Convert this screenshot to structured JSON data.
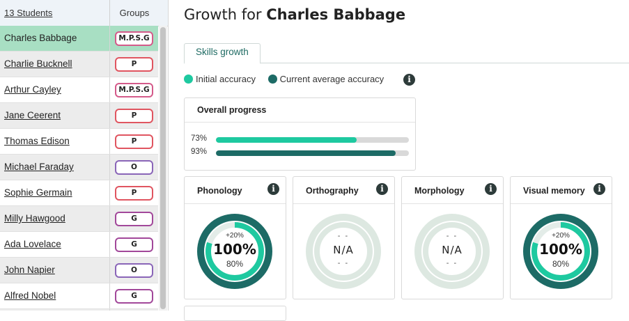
{
  "sidebar": {
    "header_count": "13 Students",
    "header_groups": "Groups",
    "students": [
      {
        "name": "Charles Babbage",
        "group": "M.P.S.G",
        "kind": "mpsg"
      },
      {
        "name": "Charlie Bucknell",
        "group": "P",
        "kind": "p"
      },
      {
        "name": "Arthur Cayley",
        "group": "M.P.S.G",
        "kind": "mpsg"
      },
      {
        "name": "Jane Ceerent",
        "group": "P",
        "kind": "p"
      },
      {
        "name": "Thomas Edison",
        "group": "P",
        "kind": "p"
      },
      {
        "name": "Michael Faraday",
        "group": "O",
        "kind": "o"
      },
      {
        "name": "Sophie Germain",
        "group": "P",
        "kind": "p"
      },
      {
        "name": "Milly Hawgood",
        "group": "G",
        "kind": "g"
      },
      {
        "name": "Ada Lovelace",
        "group": "G",
        "kind": "g"
      },
      {
        "name": "John Napier",
        "group": "O",
        "kind": "o"
      },
      {
        "name": "Alfred Nobel",
        "group": "G",
        "kind": "g"
      },
      {
        "name": "",
        "group": "",
        "kind": "g"
      }
    ],
    "selected_index": 0
  },
  "header": {
    "title_prefix": "Growth for",
    "student_name": "Charles Babbage"
  },
  "tabs": [
    {
      "label": "Skills growth",
      "active": true
    }
  ],
  "legend": {
    "initial_label": "Initial accuracy",
    "current_label": "Current average accuracy",
    "initial_color": "#1ec9a0",
    "current_color": "#1d6b66"
  },
  "overall_progress": {
    "title": "Overall progress",
    "initial_pct_label": "73%",
    "initial_value": 0.73,
    "current_pct_label": "93%",
    "current_value": 0.93
  },
  "skills": [
    {
      "name": "Phonology",
      "has_data": true,
      "delta": "+20%",
      "current": "100%",
      "initial": "80%",
      "current_value": 1.0,
      "initial_value": 0.8
    },
    {
      "name": "Orthography",
      "has_data": false,
      "top": "- -",
      "na": "N/A",
      "bottom": "- -"
    },
    {
      "name": "Morphology",
      "has_data": false,
      "top": "- -",
      "na": "N/A",
      "bottom": "- -"
    },
    {
      "name": "Visual memory",
      "has_data": true,
      "delta": "+20%",
      "current": "100%",
      "initial": "80%",
      "current_value": 1.0,
      "initial_value": 0.8
    }
  ],
  "icons": {
    "info": "info-icon",
    "info_glyph": "i"
  }
}
